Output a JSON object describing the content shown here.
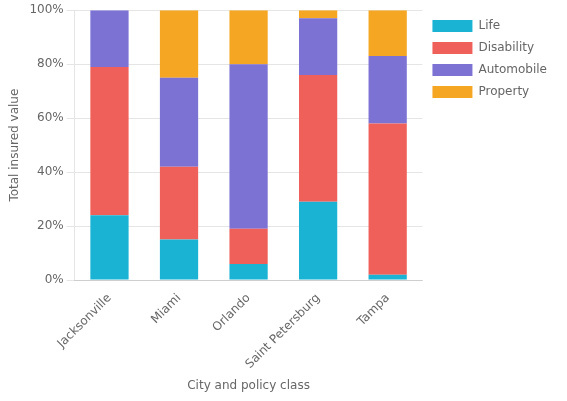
{
  "chart_data": {
    "type": "bar",
    "stacked": true,
    "xlabel": "City and policy class",
    "ylabel": "Total insured value",
    "categories": [
      "Jacksonville",
      "Miami",
      "Orlando",
      "Saint Petersburg",
      "Tampa"
    ],
    "series": [
      {
        "name": "Life",
        "color": "#1ab3d4",
        "values": [
          24,
          15,
          6,
          29,
          2
        ]
      },
      {
        "name": "Disability",
        "color": "#f0605a",
        "values": [
          55,
          27,
          13,
          47,
          56
        ]
      },
      {
        "name": "Automobile",
        "color": "#7b72d4",
        "values": [
          21,
          33,
          61,
          21,
          25
        ]
      },
      {
        "name": "Property",
        "color": "#f5a623",
        "values": [
          0,
          25,
          20,
          3,
          17
        ]
      }
    ],
    "ylim": [
      0,
      100
    ],
    "yticks": [
      {
        "value": 0,
        "label": "0%"
      },
      {
        "value": 20,
        "label": "20%"
      },
      {
        "value": 40,
        "label": "40%"
      },
      {
        "value": 60,
        "label": "60%"
      },
      {
        "value": 80,
        "label": "80%"
      },
      {
        "value": 100,
        "label": "100%"
      }
    ],
    "grid": true,
    "legend": "right"
  }
}
